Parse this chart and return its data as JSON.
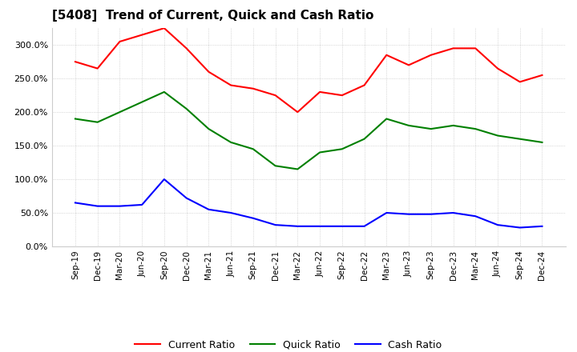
{
  "title": "[5408]  Trend of Current, Quick and Cash Ratio",
  "x_labels": [
    "Sep-19",
    "Dec-19",
    "Mar-20",
    "Jun-20",
    "Sep-20",
    "Dec-20",
    "Mar-21",
    "Jun-21",
    "Sep-21",
    "Dec-21",
    "Mar-22",
    "Jun-22",
    "Sep-22",
    "Dec-22",
    "Mar-23",
    "Jun-23",
    "Sep-23",
    "Dec-23",
    "Mar-24",
    "Jun-24",
    "Sep-24",
    "Dec-24"
  ],
  "current_ratio": [
    275,
    265,
    305,
    315,
    325,
    295,
    260,
    240,
    235,
    225,
    200,
    230,
    225,
    240,
    285,
    270,
    285,
    295,
    295,
    265,
    245,
    255
  ],
  "quick_ratio": [
    190,
    185,
    200,
    215,
    230,
    205,
    175,
    155,
    145,
    120,
    115,
    140,
    145,
    160,
    190,
    180,
    175,
    180,
    175,
    165,
    160,
    155
  ],
  "cash_ratio": [
    65,
    60,
    60,
    62,
    100,
    72,
    55,
    50,
    42,
    32,
    30,
    30,
    30,
    30,
    50,
    48,
    48,
    50,
    45,
    32,
    28,
    30
  ],
  "ylim": [
    0,
    325
  ],
  "yticks": [
    0,
    50,
    100,
    150,
    200,
    250,
    300
  ],
  "current_color": "#ff0000",
  "quick_color": "#008000",
  "cash_color": "#0000ff",
  "background_color": "#ffffff",
  "grid_color": "#aaaaaa"
}
